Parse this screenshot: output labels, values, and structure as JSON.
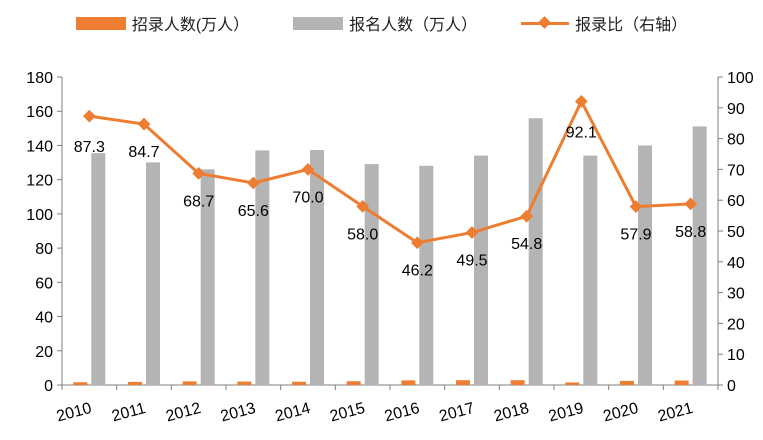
{
  "chart_data": {
    "type": "bar+line",
    "categories": [
      "2010",
      "2011",
      "2012",
      "2013",
      "2014",
      "2015",
      "2016",
      "2017",
      "2018",
      "2019",
      "2020",
      "2021"
    ],
    "series": [
      {
        "name": "招录人数(万人）",
        "axis": "left",
        "kind": "bar",
        "color": "#ED7D31",
        "values": [
          1.6,
          1.8,
          2.1,
          2.0,
          1.9,
          2.2,
          2.7,
          2.8,
          2.8,
          1.5,
          2.4,
          2.6
        ]
      },
      {
        "name": "报名人数（万人）",
        "axis": "left",
        "kind": "bar",
        "color": "#B4B4B4",
        "values": [
          135.5,
          130.1,
          126.0,
          137.1,
          137.3,
          129.1,
          128.1,
          134.1,
          155.9,
          134.1,
          140.0,
          151.1
        ]
      },
      {
        "name": "报录比（右轴）",
        "axis": "right",
        "kind": "line",
        "color": "#ED7D31",
        "values": [
          87.3,
          84.7,
          68.7,
          65.6,
          70.0,
          58.0,
          46.2,
          49.5,
          54.8,
          92.1,
          57.9,
          58.8
        ],
        "labels": [
          "87.3",
          "84.7",
          "68.7",
          "65.6",
          "70.0",
          "58.0",
          "46.2",
          "49.5",
          "54.8",
          "92.1",
          "57.9",
          "58.8"
        ]
      }
    ],
    "y_left": {
      "min": 0,
      "max": 180,
      "step": 20,
      "ticks": [
        "0",
        "20",
        "40",
        "60",
        "80",
        "100",
        "120",
        "140",
        "160",
        "180"
      ]
    },
    "y_right": {
      "min": 0,
      "max": 100,
      "step": 10,
      "ticks": [
        "0",
        "10",
        "20",
        "30",
        "40",
        "50",
        "60",
        "70",
        "80",
        "90",
        "100"
      ]
    },
    "title": "",
    "xlabel": "",
    "ylabel": "",
    "grid": false,
    "legend_position": "top-center",
    "axis_color": "#7F7F7F",
    "text_color": "#000000"
  }
}
